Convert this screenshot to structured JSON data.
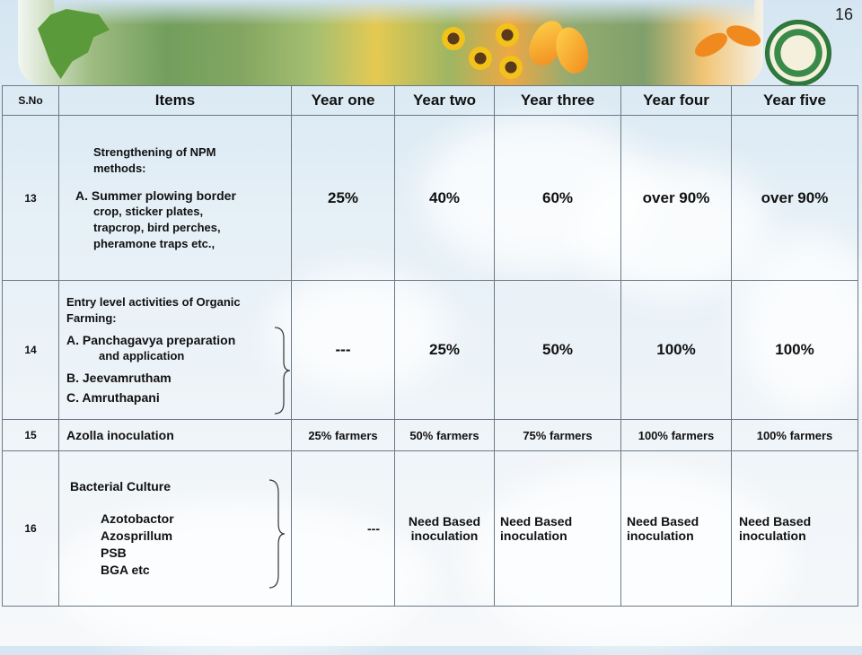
{
  "page_number": "16",
  "table": {
    "headers": [
      "S.No",
      "Items",
      "Year one",
      "Year two",
      "Year three",
      "Year four",
      "Year five"
    ],
    "rows": [
      {
        "sno": "13",
        "items": {
          "intro": "Strengthening of NPM methods:",
          "lines": [
            "A. Summer plowing border",
            "crop, sticker plates,",
            "trapcrop, bird    perches,",
            "pheramone traps etc.,"
          ]
        },
        "values": [
          "25%",
          "40%",
          "60%",
          "over 90%",
          "over 90%"
        ]
      },
      {
        "sno": "14",
        "items": {
          "intro": "Entry level activities of Organic Farming:",
          "lines": [
            "A.  Panchagavya preparation",
            "and application",
            "B. Jeevamrutham",
            "C.  Amruthapani"
          ]
        },
        "values": [
          "---",
          "25%",
          "50%",
          "100%",
          "100%"
        ]
      },
      {
        "sno": "15",
        "items": {
          "intro": "Azolla inoculation",
          "lines": []
        },
        "values": [
          "25% farmers",
          "50% farmers",
          "75% farmers",
          "100% farmers",
          "100% farmers"
        ]
      },
      {
        "sno": "16",
        "items": {
          "intro": "Bacterial Culture",
          "lines": [
            "Azotobactor",
            "Azosprillum",
            "PSB",
            "BGA etc"
          ]
        },
        "values": [
          "---",
          "Need Based inoculation",
          "Need Based inoculation",
          "Need Based inoculation",
          "Need Based inoculation"
        ]
      }
    ]
  }
}
